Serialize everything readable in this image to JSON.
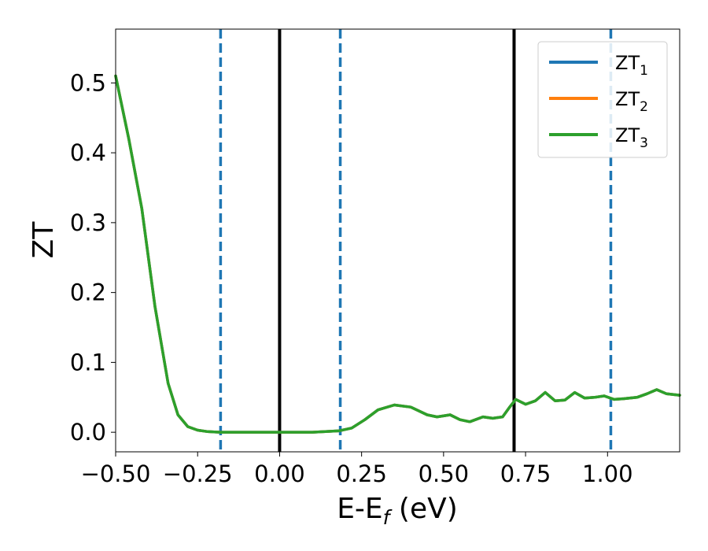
{
  "chart_data": {
    "type": "line",
    "title": "",
    "xlabel": "E-E",
    "xlabel_sub": "f",
    "xlabel_unit": " (eV)",
    "ylabel": "ZT",
    "xlim": [
      -0.5,
      1.22
    ],
    "ylim": [
      -0.028,
      0.577
    ],
    "grid": false,
    "legend_position": "top-right",
    "x_ticks": [
      -0.5,
      -0.25,
      0.0,
      0.25,
      0.5,
      0.75,
      1.0
    ],
    "x_tick_labels": [
      "−0.50",
      "−0.25",
      "0.00",
      "0.25",
      "0.50",
      "0.75",
      "1.00"
    ],
    "y_ticks": [
      0.0,
      0.1,
      0.2,
      0.3,
      0.4,
      0.5
    ],
    "y_tick_labels": [
      "0.0",
      "0.1",
      "0.2",
      "0.3",
      "0.4",
      "0.5"
    ],
    "vlines_solid": [
      0.0,
      0.715
    ],
    "vlines_dashed": [
      -0.18,
      0.185,
      1.01
    ],
    "colors": {
      "series1": "#1f77b4",
      "series2": "#ff7f0e",
      "series3": "#2ca02c",
      "solid_line": "#000000",
      "dashed_line": "#1f77b4"
    },
    "x": [
      -0.5,
      -0.46,
      -0.42,
      -0.38,
      -0.34,
      -0.31,
      -0.28,
      -0.25,
      -0.22,
      -0.2,
      -0.18,
      -0.1,
      0.0,
      0.1,
      0.18,
      0.22,
      0.26,
      0.3,
      0.35,
      0.4,
      0.45,
      0.48,
      0.52,
      0.55,
      0.58,
      0.62,
      0.65,
      0.68,
      0.7,
      0.72,
      0.75,
      0.78,
      0.81,
      0.84,
      0.87,
      0.9,
      0.93,
      0.96,
      0.99,
      1.02,
      1.05,
      1.09,
      1.12,
      1.15,
      1.18,
      1.22
    ],
    "series": [
      {
        "name": "ZT",
        "name_sub": "1",
        "values": [
          0.51,
          0.42,
          0.32,
          0.18,
          0.07,
          0.025,
          0.008,
          0.003,
          0.001,
          0.0005,
          0.0,
          0.0,
          0.0,
          0.0,
          0.002,
          0.006,
          0.018,
          0.032,
          0.039,
          0.036,
          0.025,
          0.022,
          0.025,
          0.018,
          0.015,
          0.022,
          0.02,
          0.022,
          0.035,
          0.047,
          0.04,
          0.045,
          0.057,
          0.045,
          0.046,
          0.057,
          0.049,
          0.05,
          0.052,
          0.047,
          0.048,
          0.05,
          0.055,
          0.061,
          0.055,
          0.053
        ]
      },
      {
        "name": "ZT",
        "name_sub": "2",
        "values": [
          0.51,
          0.42,
          0.32,
          0.18,
          0.07,
          0.025,
          0.008,
          0.003,
          0.001,
          0.0005,
          0.0,
          0.0,
          0.0,
          0.0,
          0.002,
          0.006,
          0.018,
          0.032,
          0.039,
          0.036,
          0.025,
          0.022,
          0.025,
          0.018,
          0.015,
          0.022,
          0.02,
          0.022,
          0.035,
          0.047,
          0.04,
          0.045,
          0.057,
          0.045,
          0.046,
          0.057,
          0.049,
          0.05,
          0.052,
          0.047,
          0.048,
          0.05,
          0.055,
          0.061,
          0.055,
          0.053
        ]
      },
      {
        "name": "ZT",
        "name_sub": "3",
        "values": [
          0.51,
          0.42,
          0.32,
          0.18,
          0.07,
          0.025,
          0.008,
          0.003,
          0.001,
          0.0005,
          0.0,
          0.0,
          0.0,
          0.0,
          0.002,
          0.006,
          0.018,
          0.032,
          0.039,
          0.036,
          0.025,
          0.022,
          0.025,
          0.018,
          0.015,
          0.022,
          0.02,
          0.022,
          0.035,
          0.047,
          0.04,
          0.045,
          0.057,
          0.045,
          0.046,
          0.057,
          0.049,
          0.05,
          0.052,
          0.047,
          0.048,
          0.05,
          0.055,
          0.061,
          0.055,
          0.053
        ]
      }
    ]
  }
}
